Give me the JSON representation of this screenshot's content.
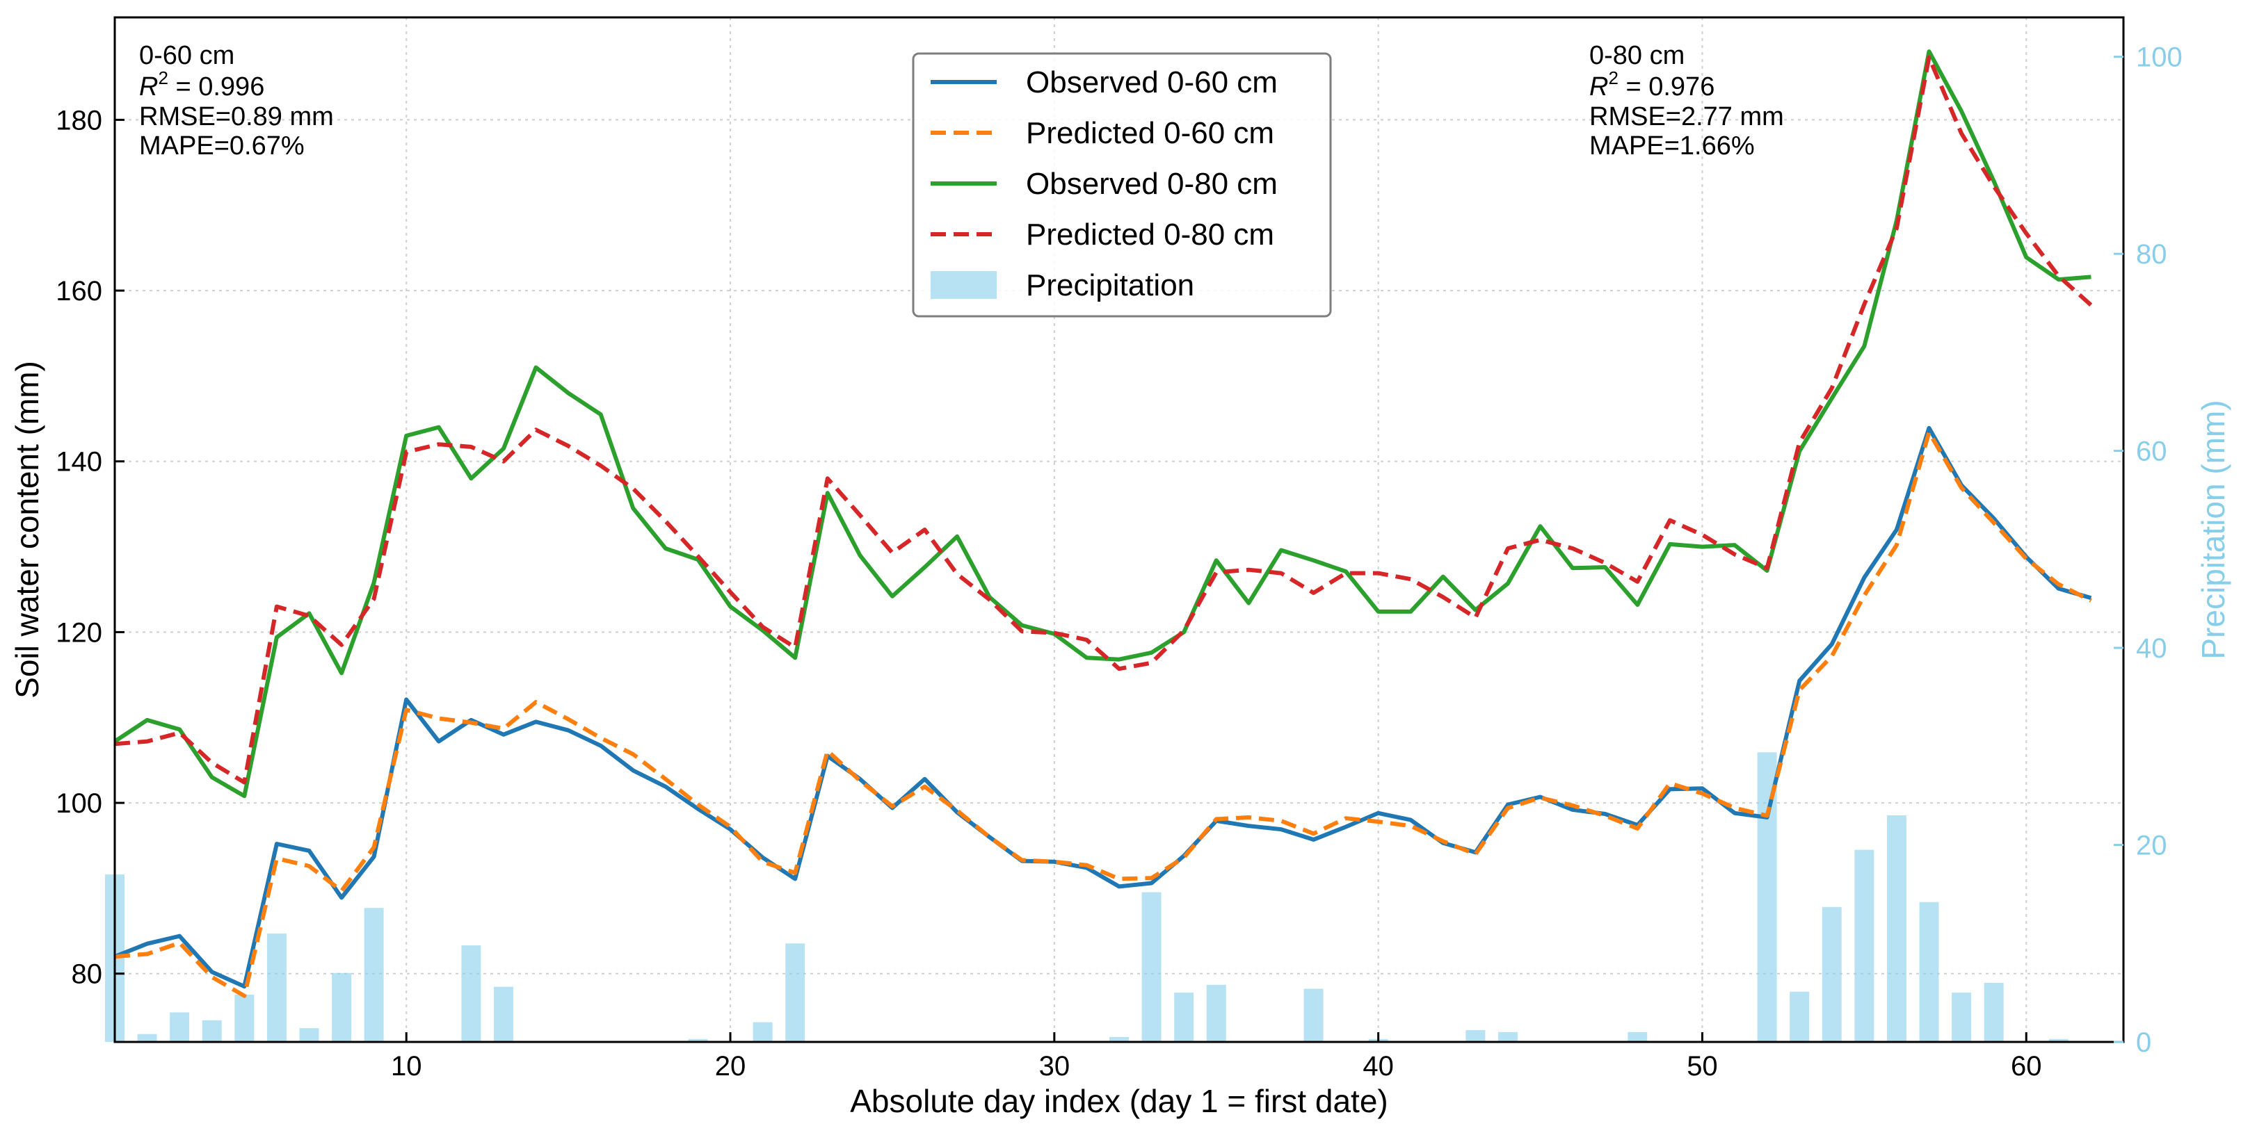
{
  "chart_data": {
    "type": "line",
    "xlabel": "Absolute day index (day 1 = first date)",
    "ylabel": "Soil water content (mm)",
    "ylabel_right": "Precipitation (mm)",
    "xlim": [
      1,
      63
    ],
    "ylim": [
      72,
      192
    ],
    "ylim_right": [
      0,
      104
    ],
    "xticks": [
      10,
      20,
      30,
      40,
      50,
      60
    ],
    "yticks": [
      80,
      100,
      120,
      140,
      160,
      180
    ],
    "yticks_right": [
      0,
      20,
      40,
      60,
      80,
      100
    ],
    "grid": true,
    "legend_position": "top-center",
    "colors": {
      "obs60": "#1f77b4",
      "pred60": "#ff7f0e",
      "obs80": "#2ca02c",
      "pred80": "#d62728",
      "precip": "#87ceeb",
      "right_axis": "#87ceeb"
    },
    "annotations": {
      "left": {
        "depth": "0-60 cm",
        "r2_label": "R",
        "r2_exp": "2",
        "r2_value": " = 0.996",
        "rmse": "RMSE=0.89 mm",
        "mape": "MAPE=0.67%"
      },
      "right": {
        "depth": "0-80 cm",
        "r2_label": "R",
        "r2_exp": "2",
        "r2_value": " = 0.976",
        "rmse": "RMSE=2.77 mm",
        "mape": "MAPE=1.66%"
      }
    },
    "x": [
      1,
      2,
      3,
      4,
      5,
      6,
      7,
      8,
      9,
      10,
      11,
      12,
      13,
      14,
      15,
      16,
      17,
      18,
      19,
      20,
      21,
      22,
      23,
      24,
      25,
      26,
      27,
      28,
      29,
      30,
      31,
      32,
      33,
      34,
      35,
      36,
      37,
      38,
      39,
      40,
      41,
      42,
      43,
      44,
      45,
      46,
      47,
      48,
      49,
      50,
      51,
      52,
      53,
      54,
      55,
      56,
      57,
      58,
      59,
      60,
      61,
      62
    ],
    "series": [
      {
        "name": "Observed 0-60 cm",
        "style": "solid",
        "color": "#1f77b4",
        "values": [
          82,
          83.5,
          84.4,
          80.2,
          78.5,
          95.2,
          94.4,
          88.9,
          93.7,
          112.1,
          107.2,
          109.7,
          108.0,
          109.5,
          108.5,
          106.7,
          103.8,
          101.9,
          99.3,
          96.9,
          93.6,
          91.1,
          105.5,
          102.8,
          99.4,
          102.8,
          98.9,
          96.0,
          93.2,
          93.1,
          92.4,
          90.2,
          90.6,
          93.8,
          97.9,
          97.3,
          96.9,
          95.7,
          97.2,
          98.8,
          98.0,
          95.3,
          94.2,
          99.8,
          100.7,
          99.2,
          98.7,
          97.4,
          101.6,
          101.7,
          98.8,
          98.3,
          114.3,
          118.6,
          126.4,
          132.0,
          143.9,
          137.2,
          133.3,
          128.8,
          125.1,
          124.0
        ]
      },
      {
        "name": "Predicted 0-60 cm",
        "style": "dashed",
        "color": "#ff7f0e",
        "values": [
          82,
          82.3,
          83.6,
          79.6,
          77.4,
          93.5,
          92.6,
          89.7,
          94.8,
          110.9,
          109.9,
          109.4,
          108.7,
          111.8,
          109.8,
          107.6,
          105.7,
          102.8,
          99.8,
          97.2,
          93.1,
          91.8,
          106.1,
          102.6,
          99.6,
          101.9,
          99.1,
          96.0,
          93.3,
          93.1,
          92.7,
          91.1,
          91.2,
          93.6,
          98.1,
          98.3,
          97.9,
          96.4,
          98.2,
          97.8,
          97.3,
          95.5,
          94.0,
          99.4,
          100.6,
          99.7,
          98.5,
          97.0,
          102.3,
          101.1,
          99.4,
          98.5,
          113.2,
          117.2,
          124.3,
          130.2,
          143.4,
          136.9,
          132.8,
          128.6,
          125.6,
          123.7
        ]
      },
      {
        "name": "Observed 0-80 cm",
        "style": "solid",
        "color": "#2ca02c",
        "values": [
          107.2,
          109.7,
          108.6,
          103.0,
          100.8,
          119.4,
          122.2,
          115.2,
          125.8,
          143.0,
          144.0,
          138.0,
          141.5,
          151.0,
          148.0,
          145.5,
          134.5,
          129.8,
          128.5,
          123.0,
          120.2,
          117.0,
          136.3,
          129.0,
          124.2,
          127.6,
          131.2,
          124.1,
          120.8,
          119.8,
          117.0,
          116.8,
          117.6,
          120.0,
          128.4,
          123.4,
          129.6,
          128.4,
          127.1,
          122.4,
          122.4,
          126.5,
          122.6,
          125.7,
          132.4,
          127.5,
          127.6,
          123.2,
          130.3,
          130.0,
          130.2,
          127.2,
          141.2,
          147.4,
          153.5,
          168.2,
          188.0,
          181.0,
          172.8,
          163.9,
          161.3,
          161.6
        ]
      },
      {
        "name": "Predicted 0-80 cm",
        "style": "dashed",
        "color": "#d62728",
        "values": [
          106.9,
          107.2,
          108.2,
          104.7,
          102.4,
          123.0,
          121.9,
          118.5,
          123.9,
          141.1,
          142.0,
          141.7,
          140.0,
          143.7,
          141.8,
          139.5,
          136.8,
          133.0,
          128.9,
          124.7,
          120.6,
          118.2,
          138.0,
          133.7,
          129.3,
          132.0,
          126.8,
          123.8,
          120.1,
          119.9,
          119.1,
          115.7,
          116.4,
          120.2,
          127.0,
          127.3,
          126.9,
          124.6,
          126.9,
          126.9,
          126.2,
          124.1,
          121.7,
          129.8,
          130.8,
          129.8,
          128.1,
          125.9,
          133.1,
          131.4,
          129.1,
          127.5,
          142.2,
          148.6,
          158.4,
          167.3,
          187.3,
          178.4,
          172.2,
          166.7,
          161.7,
          158.3
        ]
      }
    ],
    "bars": {
      "name": "Precipitation",
      "color": "#87ceeb",
      "x": [
        1,
        2,
        3,
        4,
        5,
        6,
        7,
        8,
        9,
        10,
        11,
        12,
        13,
        14,
        15,
        16,
        17,
        18,
        19,
        20,
        21,
        22,
        23,
        24,
        25,
        26,
        27,
        28,
        29,
        30,
        31,
        32,
        33,
        34,
        35,
        36,
        37,
        38,
        39,
        40,
        41,
        42,
        43,
        44,
        45,
        46,
        47,
        48,
        49,
        50,
        51,
        52,
        53,
        54,
        55,
        56,
        57,
        58,
        59,
        60,
        61,
        62
      ],
      "values": [
        17,
        0.8,
        3,
        2.2,
        4.8,
        11,
        1.4,
        7,
        13.6,
        0,
        0,
        9.8,
        5.6,
        0,
        0,
        0,
        0,
        0,
        0.3,
        0,
        2,
        10,
        0,
        0,
        0,
        0,
        0,
        0,
        0,
        0,
        0,
        0.5,
        15.2,
        5,
        5.8,
        0,
        0,
        5.4,
        0,
        0.3,
        0,
        0,
        1.2,
        1,
        0,
        0,
        0,
        1,
        0,
        0,
        0,
        29.4,
        5.1,
        13.7,
        19.5,
        23,
        14.2,
        5,
        6,
        0,
        0.3,
        0
      ]
    }
  }
}
